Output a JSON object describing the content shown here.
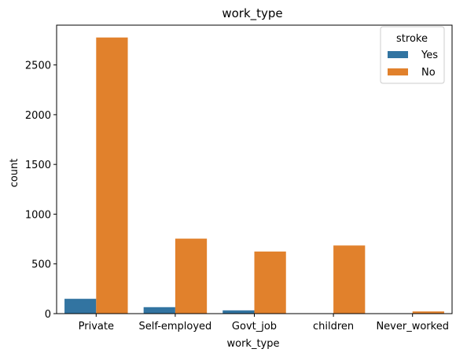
{
  "chart_data": {
    "type": "bar",
    "title": "work_type",
    "xlabel": "work_type",
    "ylabel": "count",
    "categories": [
      "Private",
      "Self-employed",
      "Govt_job",
      "children",
      "Never_worked"
    ],
    "series": [
      {
        "name": "Yes",
        "color": "#3274a1",
        "values": [
          149,
          65,
          33,
          2,
          0
        ]
      },
      {
        "name": "No",
        "color": "#e1812c",
        "values": [
          2776,
          754,
          624,
          685,
          22
        ]
      }
    ],
    "ylim": [
      0,
      2900
    ],
    "yticks": [
      0,
      500,
      1000,
      1500,
      2000,
      2500
    ],
    "legend": {
      "title": "stroke",
      "placement": "top-right"
    },
    "grid": false
  }
}
